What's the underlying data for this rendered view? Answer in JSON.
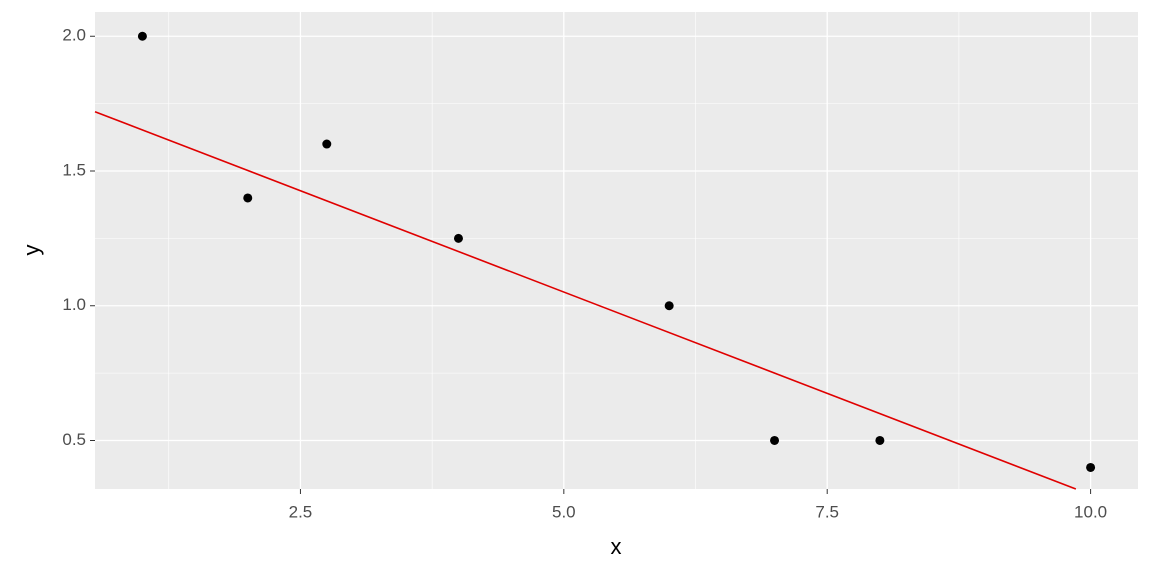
{
  "chart_data": {
    "type": "scatter",
    "x_label": "x",
    "y_label": "y",
    "series": [
      {
        "type": "scatter",
        "color": "#000000",
        "x": [
          1,
          2,
          2.75,
          4,
          6,
          7,
          8,
          10
        ],
        "values": [
          2.0,
          1.4,
          1.6,
          1.25,
          1.0,
          0.5,
          0.5,
          0.4
        ]
      },
      {
        "type": "line",
        "color": "#e00000",
        "x": [
          0.55,
          9.86
        ],
        "values": [
          1.72,
          0.32
        ]
      }
    ],
    "xlim": [
      0.55,
      10.45
    ],
    "ylim": [
      0.32,
      2.09
    ],
    "xticks": [
      {
        "value": 2.5,
        "label": "2.5"
      },
      {
        "value": 5,
        "label": "5.0"
      },
      {
        "value": 7.5,
        "label": "7.5"
      },
      {
        "value": 10,
        "label": "10.0"
      }
    ],
    "yticks": [
      {
        "value": 0.5,
        "label": "0.5"
      },
      {
        "value": 1,
        "label": "1.0"
      },
      {
        "value": 1.5,
        "label": "1.5"
      },
      {
        "value": 2,
        "label": "2.0"
      }
    ],
    "x_minor_grid": [
      1.25,
      3.75,
      6.25,
      8.75
    ],
    "y_minor_grid": [
      0.75,
      1.25,
      1.75
    ],
    "grid": true,
    "panel_color": "#ebebeb"
  }
}
